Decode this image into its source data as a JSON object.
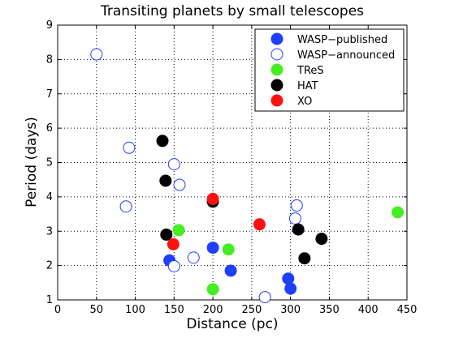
{
  "chart_data": {
    "type": "scatter",
    "title": "Transiting planets by small telescopes",
    "xlabel": "Distance (pc)",
    "ylabel": "Period (days)",
    "xlim": [
      0,
      450
    ],
    "ylim": [
      1,
      9
    ],
    "xticks": [
      0,
      50,
      100,
      150,
      200,
      250,
      300,
      350,
      400,
      450
    ],
    "yticks": [
      1,
      2,
      3,
      4,
      5,
      6,
      7,
      8,
      9
    ],
    "grid": true,
    "legend_position": "top-right",
    "series": [
      {
        "name": "WASP−published",
        "color": "#1f3fff",
        "filled": true,
        "points": [
          [
            144,
            2.15
          ],
          [
            200,
            2.52
          ],
          [
            223,
            1.85
          ],
          [
            297,
            1.62
          ],
          [
            300,
            1.33
          ]
        ]
      },
      {
        "name": "WASP−announced",
        "color": "#1f3fff",
        "filled": false,
        "points": [
          [
            50,
            8.15
          ],
          [
            92,
            5.43
          ],
          [
            88,
            3.72
          ],
          [
            150,
            4.95
          ],
          [
            157,
            4.35
          ],
          [
            150,
            1.98
          ],
          [
            175,
            2.23
          ],
          [
            308,
            3.75
          ],
          [
            306,
            3.37
          ],
          [
            267,
            1.08
          ]
        ]
      },
      {
        "name": "TReS",
        "color": "#44ee22",
        "filled": true,
        "points": [
          [
            156,
            3.03
          ],
          [
            220,
            2.47
          ],
          [
            200,
            1.31
          ],
          [
            438,
            3.55
          ]
        ]
      },
      {
        "name": "HAT",
        "color": "#000000",
        "filled": true,
        "points": [
          [
            135,
            5.63
          ],
          [
            139,
            4.47
          ],
          [
            200,
            3.86
          ],
          [
            140,
            2.9
          ],
          [
            310,
            3.05
          ],
          [
            340,
            2.78
          ],
          [
            318,
            2.21
          ]
        ]
      },
      {
        "name": "XO",
        "color": "#ff1111",
        "filled": true,
        "points": [
          [
            200,
            3.94
          ],
          [
            260,
            3.2
          ],
          [
            149,
            2.62
          ]
        ]
      }
    ]
  }
}
